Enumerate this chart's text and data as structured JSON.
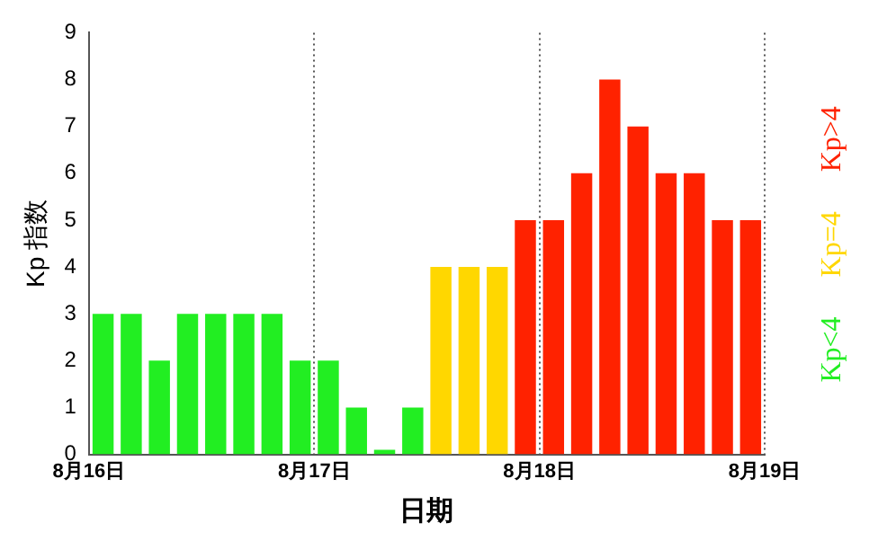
{
  "chart_data": {
    "type": "bar",
    "xlabel": "日期",
    "ylabel": "Kp 指数",
    "x": [
      "--08-16T01:30",
      "--08-16T04:30",
      "--08-16T07:30",
      "--08-16T10:30",
      "--08-16T13:30",
      "--08-16T16:30",
      "--08-16T19:30",
      "--08-16T22:30",
      "--08-17T01:30",
      "--08-17T04:30",
      "--08-17T07:30",
      "--08-17T10:30",
      "--08-17T13:30",
      "--08-17T16:30",
      "--08-17T19:30",
      "--08-17T22:30",
      "--08-18T01:30",
      "--08-18T04:30",
      "--08-18T07:30",
      "--08-18T10:30",
      "--08-18T13:30",
      "--08-18T16:30",
      "--08-18T19:30",
      "--08-18T22:30"
    ],
    "series": [
      {
        "name": "Kp<4",
        "color": "#22ee22",
        "values": [
          3,
          3,
          2,
          3,
          3,
          3,
          3,
          2,
          2,
          1,
          0.1,
          1,
          null,
          null,
          null,
          null,
          null,
          null,
          null,
          null,
          null,
          null,
          null,
          null
        ]
      },
      {
        "name": "Kp=4",
        "color": "#ffd700",
        "values": [
          null,
          null,
          null,
          null,
          null,
          null,
          null,
          null,
          null,
          null,
          null,
          null,
          4,
          4,
          4,
          null,
          null,
          null,
          null,
          null,
          null,
          null,
          null,
          null
        ]
      },
      {
        "name": "Kp>4",
        "color": "#ff2200",
        "values": [
          null,
          null,
          null,
          null,
          null,
          null,
          null,
          null,
          null,
          null,
          null,
          null,
          null,
          null,
          null,
          5,
          5,
          6,
          8,
          7,
          6,
          6,
          5,
          5
        ]
      }
    ],
    "xlim": [
      "--08-16T00:00",
      "--08-19T00:00"
    ],
    "xticks": [
      {
        "value": "--08-16",
        "label": "8月16日"
      },
      {
        "value": "--08-17",
        "label": "8月17日"
      },
      {
        "value": "--08-18",
        "label": "8月18日"
      },
      {
        "value": "--08-19",
        "label": "8月19日"
      }
    ],
    "ylim": [
      0,
      9
    ],
    "yticks": [
      0,
      1,
      2,
      3,
      4,
      5,
      6,
      7,
      8,
      9
    ],
    "grid": "x",
    "legend": "right"
  }
}
